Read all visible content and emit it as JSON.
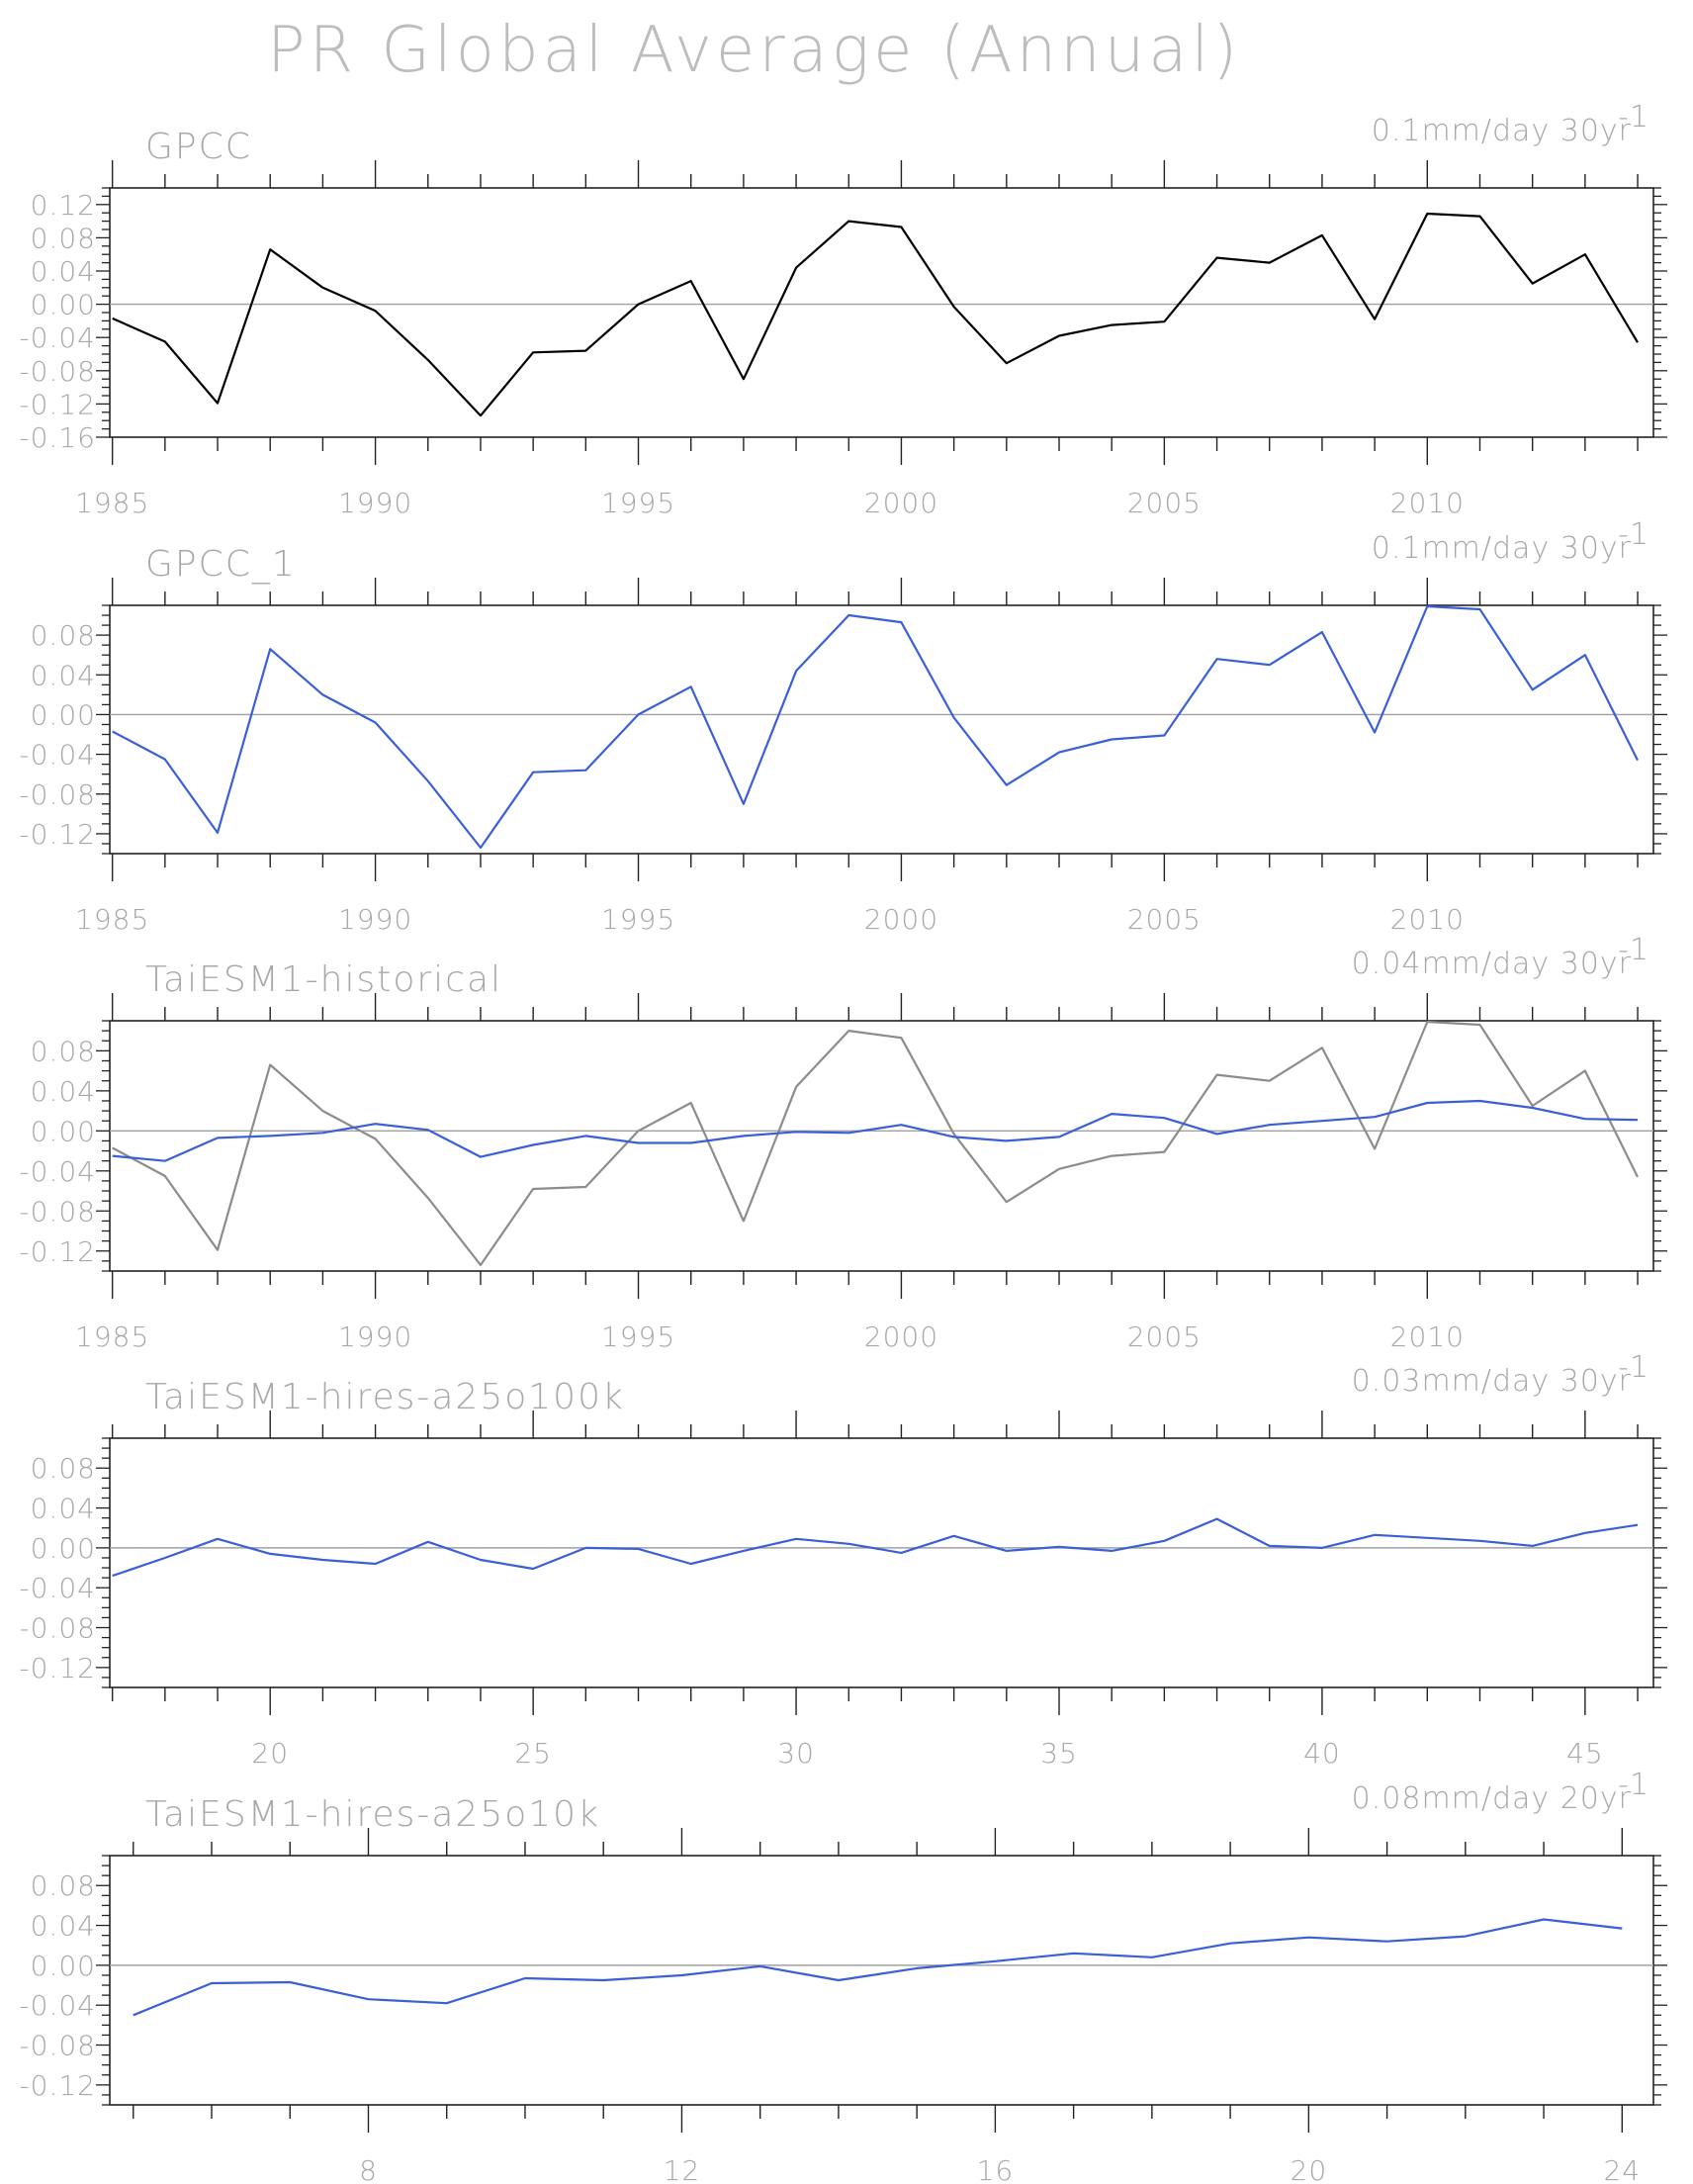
{
  "figure_title": "PR Global Average (Annual)",
  "colors": {
    "observation": "#000000",
    "model": "#3a5fd6",
    "reference": "#8c8c8c",
    "zero_line": "#a0a0a0",
    "axes": "#222222",
    "text": "#a8a8a8"
  },
  "chart_data": [
    {
      "type": "line",
      "title": "GPCC",
      "trend_label": "0.1mm/day 30yr",
      "trend_label_exponent": "-1",
      "x_tick_labels": [
        "1985",
        "1990",
        "1995",
        "2000",
        "2005",
        "2010"
      ],
      "y_tick_labels": [
        "0.12",
        "0.08",
        "0.04",
        "0.00",
        "-0.04",
        "-0.08",
        "-0.12",
        "-0.16"
      ],
      "xlim": [
        1984.95,
        2014.3
      ],
      "ylim": [
        -0.16,
        0.14
      ],
      "x_ticks": [
        1985,
        1990,
        1995,
        2000,
        2005,
        2010
      ],
      "y_ticks": [
        0.12,
        0.08,
        0.04,
        0.0,
        -0.04,
        -0.08,
        -0.12,
        -0.16
      ],
      "series": [
        {
          "color": "#000000",
          "x": [
            1985,
            1986,
            1987,
            1988,
            1989,
            1990,
            1991,
            1992,
            1993,
            1994,
            1995,
            1996,
            1997,
            1998,
            1999,
            2000,
            2001,
            2002,
            2003,
            2004,
            2005,
            2006,
            2007,
            2008,
            2009,
            2010,
            2011,
            2012,
            2013,
            2014
          ],
          "y": [
            -0.017,
            -0.045,
            -0.119,
            0.066,
            0.02,
            -0.008,
            -0.067,
            -0.134,
            -0.058,
            -0.056,
            0.0,
            0.028,
            -0.09,
            0.044,
            0.1,
            0.093,
            -0.003,
            -0.071,
            -0.038,
            -0.025,
            -0.021,
            0.056,
            0.05,
            0.083,
            -0.018,
            0.109,
            0.106,
            0.025,
            0.06,
            -0.046
          ]
        }
      ]
    },
    {
      "type": "line",
      "title": "GPCC_1",
      "trend_label": "0.1mm/day 30yr",
      "trend_label_exponent": "-1",
      "x_tick_labels": [
        "1985",
        "1990",
        "1995",
        "2000",
        "2005",
        "2010"
      ],
      "y_tick_labels": [
        "0.08",
        "0.04",
        "0.00",
        "-0.04",
        "-0.08",
        "-0.12"
      ],
      "xlim": [
        1984.95,
        2014.3
      ],
      "ylim": [
        -0.14,
        0.11
      ],
      "x_ticks": [
        1985,
        1990,
        1995,
        2000,
        2005,
        2010
      ],
      "y_ticks": [
        0.08,
        0.04,
        0.0,
        -0.04,
        -0.08,
        -0.12
      ],
      "series": [
        {
          "color": "#3a5fd6",
          "x": [
            1985,
            1986,
            1987,
            1988,
            1989,
            1990,
            1991,
            1992,
            1993,
            1994,
            1995,
            1996,
            1997,
            1998,
            1999,
            2000,
            2001,
            2002,
            2003,
            2004,
            2005,
            2006,
            2007,
            2008,
            2009,
            2010,
            2011,
            2012,
            2013,
            2014
          ],
          "y": [
            -0.017,
            -0.045,
            -0.119,
            0.066,
            0.02,
            -0.008,
            -0.067,
            -0.134,
            -0.058,
            -0.056,
            0.0,
            0.028,
            -0.09,
            0.044,
            0.1,
            0.093,
            -0.003,
            -0.071,
            -0.038,
            -0.025,
            -0.021,
            0.056,
            0.05,
            0.083,
            -0.018,
            0.109,
            0.106,
            0.025,
            0.06,
            -0.046
          ]
        }
      ]
    },
    {
      "type": "line",
      "title": "TaiESM1-historical",
      "trend_label": "0.04mm/day 30yr",
      "trend_label_exponent": "-1",
      "x_tick_labels": [
        "1985",
        "1990",
        "1995",
        "2000",
        "2005",
        "2010"
      ],
      "y_tick_labels": [
        "0.08",
        "0.04",
        "0.00",
        "-0.04",
        "-0.08",
        "-0.12"
      ],
      "xlim": [
        1984.95,
        2014.3
      ],
      "ylim": [
        -0.14,
        0.11
      ],
      "x_ticks": [
        1985,
        1990,
        1995,
        2000,
        2005,
        2010
      ],
      "y_ticks": [
        0.08,
        0.04,
        0.0,
        -0.04,
        -0.08,
        -0.12
      ],
      "series": [
        {
          "color": "#8c8c8c",
          "x": [
            1985,
            1986,
            1987,
            1988,
            1989,
            1990,
            1991,
            1992,
            1993,
            1994,
            1995,
            1996,
            1997,
            1998,
            1999,
            2000,
            2001,
            2002,
            2003,
            2004,
            2005,
            2006,
            2007,
            2008,
            2009,
            2010,
            2011,
            2012,
            2013,
            2014
          ],
          "y": [
            -0.017,
            -0.045,
            -0.119,
            0.066,
            0.02,
            -0.008,
            -0.067,
            -0.134,
            -0.058,
            -0.056,
            0.0,
            0.028,
            -0.09,
            0.044,
            0.1,
            0.093,
            -0.003,
            -0.071,
            -0.038,
            -0.025,
            -0.021,
            0.056,
            0.05,
            0.083,
            -0.018,
            0.109,
            0.106,
            0.025,
            0.06,
            -0.046
          ]
        },
        {
          "color": "#3a5fd6",
          "x": [
            1985,
            1986,
            1987,
            1988,
            1989,
            1990,
            1991,
            1992,
            1993,
            1994,
            1995,
            1996,
            1997,
            1998,
            1999,
            2000,
            2001,
            2002,
            2003,
            2004,
            2005,
            2006,
            2007,
            2008,
            2009,
            2010,
            2011,
            2012,
            2013,
            2014
          ],
          "y": [
            -0.025,
            -0.03,
            -0.007,
            -0.005,
            -0.002,
            0.007,
            0.001,
            -0.026,
            -0.014,
            -0.005,
            -0.012,
            -0.012,
            -0.005,
            -0.001,
            -0.002,
            0.006,
            -0.006,
            -0.01,
            -0.006,
            0.017,
            0.013,
            -0.003,
            0.006,
            0.01,
            0.014,
            0.028,
            0.03,
            0.023,
            0.012,
            0.011
          ]
        }
      ]
    },
    {
      "type": "line",
      "title": "TaiESM1-hires-a25o100k",
      "trend_label": "0.03mm/day 30yr",
      "trend_label_exponent": "-1",
      "x_tick_labels": [
        "20",
        "25",
        "30",
        "35",
        "40",
        "45"
      ],
      "y_tick_labels": [
        "0.08",
        "0.04",
        "0.00",
        "-0.04",
        "-0.08",
        "-0.12"
      ],
      "xlim": [
        16.95,
        46.3
      ],
      "ylim": [
        -0.14,
        0.11
      ],
      "x_ticks": [
        20,
        25,
        30,
        35,
        40,
        45
      ],
      "y_ticks": [
        0.08,
        0.04,
        0.0,
        -0.04,
        -0.08,
        -0.12
      ],
      "series": [
        {
          "color": "#3a5fd6",
          "x": [
            17,
            18,
            19,
            20,
            21,
            22,
            23,
            24,
            25,
            26,
            27,
            28,
            29,
            30,
            31,
            32,
            33,
            34,
            35,
            36,
            37,
            38,
            39,
            40,
            41,
            42,
            43,
            44,
            45,
            46
          ],
          "y": [
            -0.028,
            -0.01,
            0.009,
            -0.006,
            -0.012,
            -0.016,
            0.006,
            -0.012,
            -0.021,
            0.0,
            -0.001,
            -0.016,
            -0.003,
            0.009,
            0.004,
            -0.005,
            0.012,
            -0.003,
            0.001,
            -0.003,
            0.007,
            0.029,
            0.002,
            0.0,
            0.013,
            0.01,
            0.007,
            0.002,
            0.015,
            0.023
          ]
        }
      ]
    },
    {
      "type": "line",
      "title": "TaiESM1-hires-a25o10k",
      "trend_label": "0.08mm/day 20yr",
      "trend_label_exponent": "-1",
      "x_tick_labels": [
        "8",
        "12",
        "16",
        "20",
        "24"
      ],
      "y_tick_labels": [
        "0.08",
        "0.04",
        "0.00",
        "-0.04",
        "-0.08",
        "-0.12"
      ],
      "xlim": [
        4.7,
        24.4
      ],
      "ylim": [
        -0.14,
        0.11
      ],
      "x_ticks": [
        8,
        12,
        16,
        20,
        24
      ],
      "y_ticks": [
        0.08,
        0.04,
        0.0,
        -0.04,
        -0.08,
        -0.12
      ],
      "series": [
        {
          "color": "#3a5fd6",
          "x": [
            5,
            6,
            7,
            8,
            9,
            10,
            11,
            12,
            13,
            14,
            15,
            16,
            17,
            18,
            19,
            20,
            21,
            22,
            23,
            24
          ],
          "y": [
            -0.05,
            -0.018,
            -0.017,
            -0.034,
            -0.038,
            -0.013,
            -0.015,
            -0.01,
            -0.001,
            -0.015,
            -0.003,
            0.004,
            0.012,
            0.008,
            0.022,
            0.028,
            0.024,
            0.029,
            0.046,
            0.037
          ]
        }
      ]
    }
  ]
}
